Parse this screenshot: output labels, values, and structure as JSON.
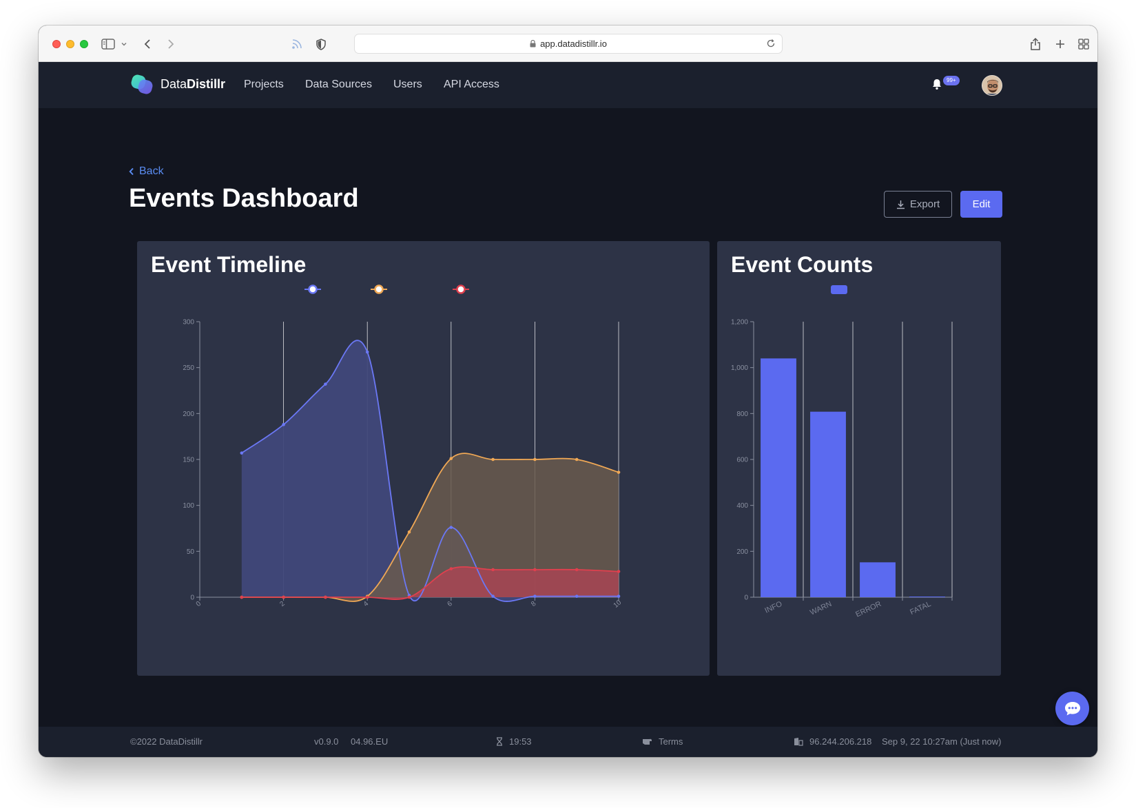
{
  "browser": {
    "url": "app.datadistillr.io"
  },
  "nav": {
    "brand_light": "Data",
    "brand_bold": "Distillr",
    "links": [
      "Projects",
      "Data Sources",
      "Users",
      "API Access"
    ],
    "notification_badge": "99+"
  },
  "header": {
    "back_label": "Back",
    "title": "Events Dashboard",
    "export_label": "Export",
    "edit_label": "Edit"
  },
  "timeline": {
    "title": "Event Timeline"
  },
  "counts": {
    "title": "Event Counts"
  },
  "colors": {
    "accent": "#5b6af0",
    "info": "#6b78f5",
    "warn": "#f0a855",
    "error": "#e0404e"
  },
  "chart_data": [
    {
      "type": "area",
      "title": "Event Timeline",
      "x": [
        1,
        2,
        3,
        4,
        5,
        6,
        7,
        8,
        9,
        10
      ],
      "xlim": [
        0,
        10
      ],
      "ylim": [
        0,
        300
      ],
      "xticks": [
        0,
        2,
        4,
        6,
        8,
        10
      ],
      "yticks": [
        0,
        50,
        100,
        150,
        200,
        250,
        300
      ],
      "grid": "vertical",
      "legend": "top-center",
      "series": [
        {
          "values": [
            157,
            188,
            232,
            267,
            2,
            76,
            1,
            1,
            1,
            1
          ],
          "color": "#6b78f5"
        },
        {
          "values": [
            0,
            0,
            0,
            1,
            71,
            151,
            150,
            150,
            150,
            136
          ],
          "color": "#f0a855"
        },
        {
          "values": [
            0,
            0,
            0,
            0,
            0,
            31,
            30,
            30,
            30,
            28
          ],
          "color": "#e0404e"
        }
      ]
    },
    {
      "type": "bar",
      "title": "Event Counts",
      "categories": [
        "INFO",
        "WARN",
        "ERROR",
        "FATAL"
      ],
      "values": [
        1040,
        808,
        152,
        2
      ],
      "ylim": [
        0,
        1200
      ],
      "yticks": [
        0,
        200,
        400,
        600,
        800,
        1000,
        1200
      ],
      "ytick_labels": [
        "0",
        "200",
        "400",
        "600",
        "800",
        "1,000",
        "1,200"
      ],
      "grid": "vertical",
      "legend": "top-center",
      "color": "#5b6af0"
    }
  ],
  "footer": {
    "copyright": "©2022 DataDistillr",
    "version": "v0.9.0",
    "region": "04.96.EU",
    "timer": "19:53",
    "terms": "Terms",
    "ip": "96.244.206.218",
    "timestamp": "Sep 9, 22 10:27am (Just now)"
  }
}
